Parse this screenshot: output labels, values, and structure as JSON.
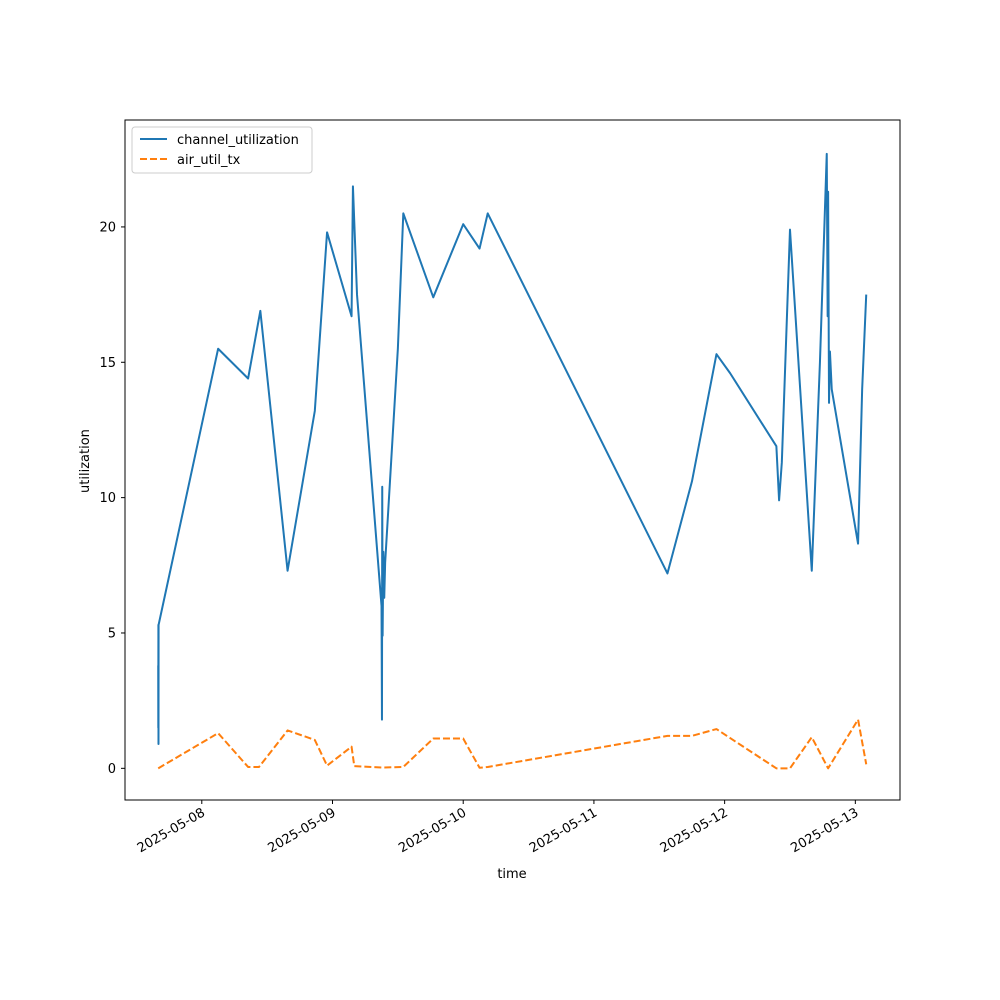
{
  "chart_data": {
    "type": "line",
    "title": "",
    "xlabel": "time",
    "ylabel": "utilization",
    "x_tick_labels": [
      "2025-05-08",
      "2025-05-09",
      "2025-05-10",
      "2025-05-11",
      "2025-05-12",
      "2025-05-13"
    ],
    "xlim": [
      "2025-05-07T09:54",
      "2025-05-13T08:12"
    ],
    "ylim": [
      -1.17,
      23.95
    ],
    "y_ticks": [
      0,
      5,
      10,
      15,
      20
    ],
    "grid": false,
    "legend": "upper left",
    "series": [
      {
        "name": "channel_utilization",
        "color": "#1f77b4",
        "style": "solid",
        "points": [
          [
            "2025-05-07T16:00",
            3.8
          ],
          [
            "2025-05-07T16:01",
            1.5
          ],
          [
            "2025-05-07T16:02",
            5.3
          ],
          [
            "2025-05-07T16:03",
            0.9
          ],
          [
            "2025-05-07T16:04",
            5.3
          ],
          [
            "2025-05-08T03:00",
            15.5
          ],
          [
            "2025-05-08T08:30",
            14.4
          ],
          [
            "2025-05-08T10:45",
            16.9
          ],
          [
            "2025-05-08T15:45",
            7.3
          ],
          [
            "2025-05-08T20:45",
            13.2
          ],
          [
            "2025-05-08T23:00",
            19.8
          ],
          [
            "2025-05-09T03:30",
            16.7
          ],
          [
            "2025-05-09T03:45",
            21.5
          ],
          [
            "2025-05-09T04:30",
            17.5
          ],
          [
            "2025-05-09T09:00",
            6.0
          ],
          [
            "2025-05-09T09:05",
            1.8
          ],
          [
            "2025-05-09T09:08",
            10.4
          ],
          [
            "2025-05-09T09:12",
            4.9
          ],
          [
            "2025-05-09T09:20",
            8.0
          ],
          [
            "2025-05-09T09:30",
            6.3
          ],
          [
            "2025-05-09T09:40",
            7.6
          ],
          [
            "2025-05-09T12:00",
            15.5
          ],
          [
            "2025-05-09T13:00",
            20.5
          ],
          [
            "2025-05-09T18:30",
            17.4
          ],
          [
            "2025-05-10T00:00",
            20.1
          ],
          [
            "2025-05-10T03:00",
            19.2
          ],
          [
            "2025-05-10T04:30",
            20.5
          ],
          [
            "2025-05-11T13:30",
            7.2
          ],
          [
            "2025-05-11T18:00",
            10.6
          ],
          [
            "2025-05-11T22:30",
            15.3
          ],
          [
            "2025-05-12T01:00",
            14.6
          ],
          [
            "2025-05-12T09:30",
            11.9
          ],
          [
            "2025-05-12T10:00",
            9.9
          ],
          [
            "2025-05-12T10:30",
            11.3
          ],
          [
            "2025-05-12T12:00",
            19.9
          ],
          [
            "2025-05-12T16:00",
            7.3
          ],
          [
            "2025-05-12T17:30",
            15.0
          ],
          [
            "2025-05-12T18:45",
            22.7
          ],
          [
            "2025-05-12T18:55",
            16.7
          ],
          [
            "2025-05-12T19:00",
            21.3
          ],
          [
            "2025-05-12T19:10",
            13.5
          ],
          [
            "2025-05-12T19:20",
            15.4
          ],
          [
            "2025-05-12T19:40",
            14.0
          ],
          [
            "2025-05-13T00:30",
            8.3
          ],
          [
            "2025-05-13T01:15",
            14.0
          ],
          [
            "2025-05-13T02:00",
            17.5
          ]
        ]
      },
      {
        "name": "air_util_tx",
        "color": "#ff7f0e",
        "style": "dashed",
        "points": [
          [
            "2025-05-07T16:00",
            0.0
          ],
          [
            "2025-05-08T03:00",
            1.3
          ],
          [
            "2025-05-08T08:30",
            0.05
          ],
          [
            "2025-05-08T10:30",
            0.05
          ],
          [
            "2025-05-08T15:45",
            1.4
          ],
          [
            "2025-05-08T20:45",
            1.05
          ],
          [
            "2025-05-08T23:00",
            0.1
          ],
          [
            "2025-05-09T03:30",
            0.8
          ],
          [
            "2025-05-09T04:00",
            0.08
          ],
          [
            "2025-05-09T09:00",
            0.03
          ],
          [
            "2025-05-09T13:00",
            0.05
          ],
          [
            "2025-05-09T18:30",
            1.1
          ],
          [
            "2025-05-10T00:00",
            1.1
          ],
          [
            "2025-05-10T03:00",
            0.02
          ],
          [
            "2025-05-10T04:30",
            0.05
          ],
          [
            "2025-05-11T13:30",
            1.2
          ],
          [
            "2025-05-11T18:00",
            1.2
          ],
          [
            "2025-05-11T22:30",
            1.45
          ],
          [
            "2025-05-12T09:30",
            0.0
          ],
          [
            "2025-05-12T12:00",
            0.0
          ],
          [
            "2025-05-12T16:00",
            1.15
          ],
          [
            "2025-05-12T19:00",
            0.0
          ],
          [
            "2025-05-13T00:30",
            1.8
          ],
          [
            "2025-05-13T02:00",
            0.15
          ]
        ]
      }
    ]
  }
}
